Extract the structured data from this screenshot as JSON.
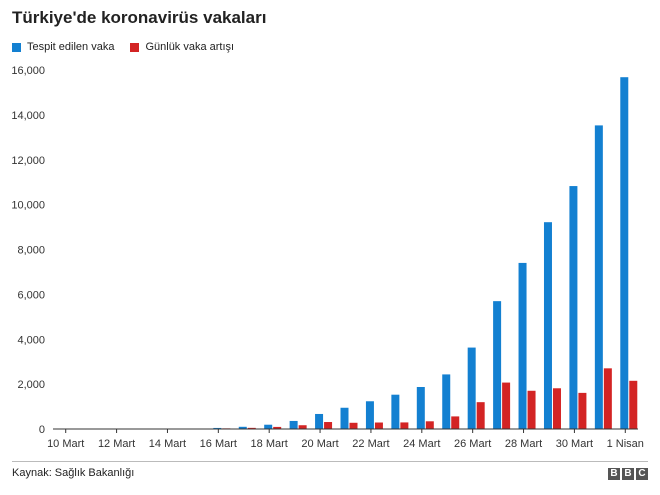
{
  "chart_data": {
    "type": "bar",
    "title": "Türkiye'de koronavirüs vakaları",
    "xlabel": "",
    "ylabel": "",
    "ylim": [
      0,
      16000
    ],
    "yticks": [
      0,
      2000,
      4000,
      6000,
      8000,
      10000,
      12000,
      14000,
      16000
    ],
    "ytick_labels": [
      "0",
      "2,000",
      "4,000",
      "6,000",
      "8,000",
      "10,000",
      "12,000",
      "14,000",
      "16,000"
    ],
    "grid": false,
    "legend": "top-left",
    "categories": [
      "10 Mart",
      "11 Mart",
      "12 Mart",
      "13 Mart",
      "14 Mart",
      "15 Mart",
      "16 Mart",
      "17 Mart",
      "18 Mart",
      "19 Mart",
      "20 Mart",
      "21 Mart",
      "22 Mart",
      "23 Mart",
      "24 Mart",
      "25 Mart",
      "26 Mart",
      "27 Mart",
      "28 Mart",
      "29 Mart",
      "30 Mart",
      "31 Mart",
      "1 Nisan"
    ],
    "xtick_labels": [
      "10 Mart",
      "",
      "12 Mart",
      "",
      "14 Mart",
      "",
      "16 Mart",
      "",
      "18 Mart",
      "",
      "20 Mart",
      "",
      "22 Mart",
      "",
      "24 Mart",
      "",
      "26 Mart",
      "",
      "28 Mart",
      "",
      "30 Mart",
      "",
      "1 Nisan"
    ],
    "series": [
      {
        "name": "Tespit edilen vaka",
        "color": "#1380d1",
        "values": [
          0,
          1,
          1,
          5,
          6,
          18,
          47,
          98,
          191,
          359,
          670,
          947,
          1236,
          1529,
          1872,
          2433,
          3629,
          5698,
          7402,
          9217,
          10827,
          13531,
          15679
        ]
      },
      {
        "name": "Günlük vaka artışı",
        "color": "#d32424",
        "values": [
          0,
          1,
          0,
          4,
          1,
          12,
          29,
          51,
          93,
          168,
          311,
          277,
          289,
          293,
          343,
          561,
          1196,
          2069,
          1704,
          1815,
          1610,
          2704,
          2148
        ]
      }
    ]
  },
  "footer": {
    "source": "Kaynak: Sağlık Bakanlığı",
    "logo_letters": [
      "B",
      "B",
      "C"
    ]
  }
}
